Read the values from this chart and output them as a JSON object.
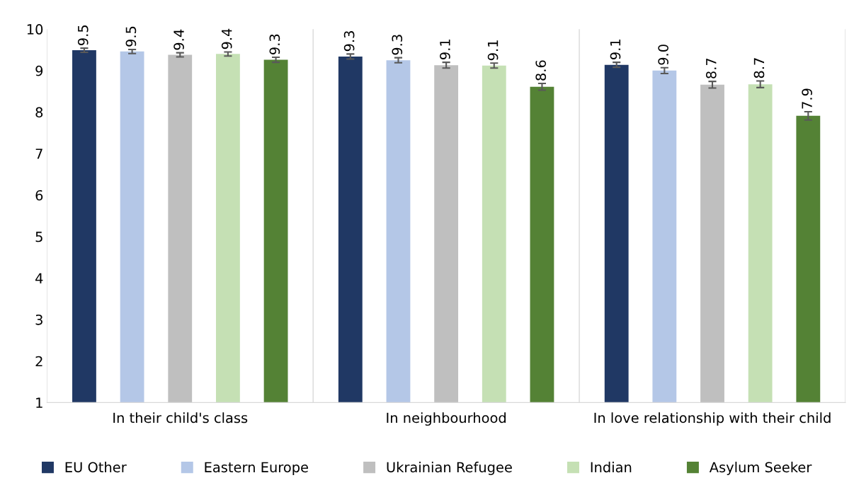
{
  "chart_data": {
    "type": "bar",
    "categories": [
      "In their child's class",
      "In neighbourhood",
      "In love relationship with their child"
    ],
    "series": [
      {
        "name": "EU Other",
        "color": "#203864",
        "values": [
          9.49,
          9.34,
          9.14
        ],
        "errors": [
          0.05,
          0.06,
          0.06
        ],
        "value_labels": [
          "9.5",
          "9.3",
          "9.1"
        ]
      },
      {
        "name": "Eastern Europe",
        "color": "#b4c7e7",
        "values": [
          9.46,
          9.25,
          9.0
        ],
        "errors": [
          0.05,
          0.06,
          0.07
        ],
        "value_labels": [
          "9.5",
          "9.3",
          "9.0"
        ]
      },
      {
        "name": "Ukrainian Refugee",
        "color": "#bfbfbf",
        "values": [
          9.38,
          9.13,
          8.66
        ],
        "errors": [
          0.05,
          0.07,
          0.08
        ],
        "value_labels": [
          "9.4",
          "9.1",
          "8.7"
        ]
      },
      {
        "name": "Indian",
        "color": "#c5e0b4",
        "values": [
          9.4,
          9.12,
          8.67
        ],
        "errors": [
          0.05,
          0.06,
          0.08
        ],
        "value_labels": [
          "9.4",
          "9.1",
          "8.7"
        ]
      },
      {
        "name": "Asylum Seeker",
        "color": "#548235",
        "values": [
          9.26,
          8.61,
          7.91
        ],
        "errors": [
          0.06,
          0.08,
          0.1
        ],
        "value_labels": [
          "9.3",
          "8.6",
          "7.9"
        ]
      }
    ],
    "ylim": [
      1,
      10
    ],
    "yticks": [
      1,
      2,
      3,
      4,
      5,
      6,
      7,
      8,
      9,
      10
    ],
    "grid": "x",
    "legend": "bottom"
  }
}
